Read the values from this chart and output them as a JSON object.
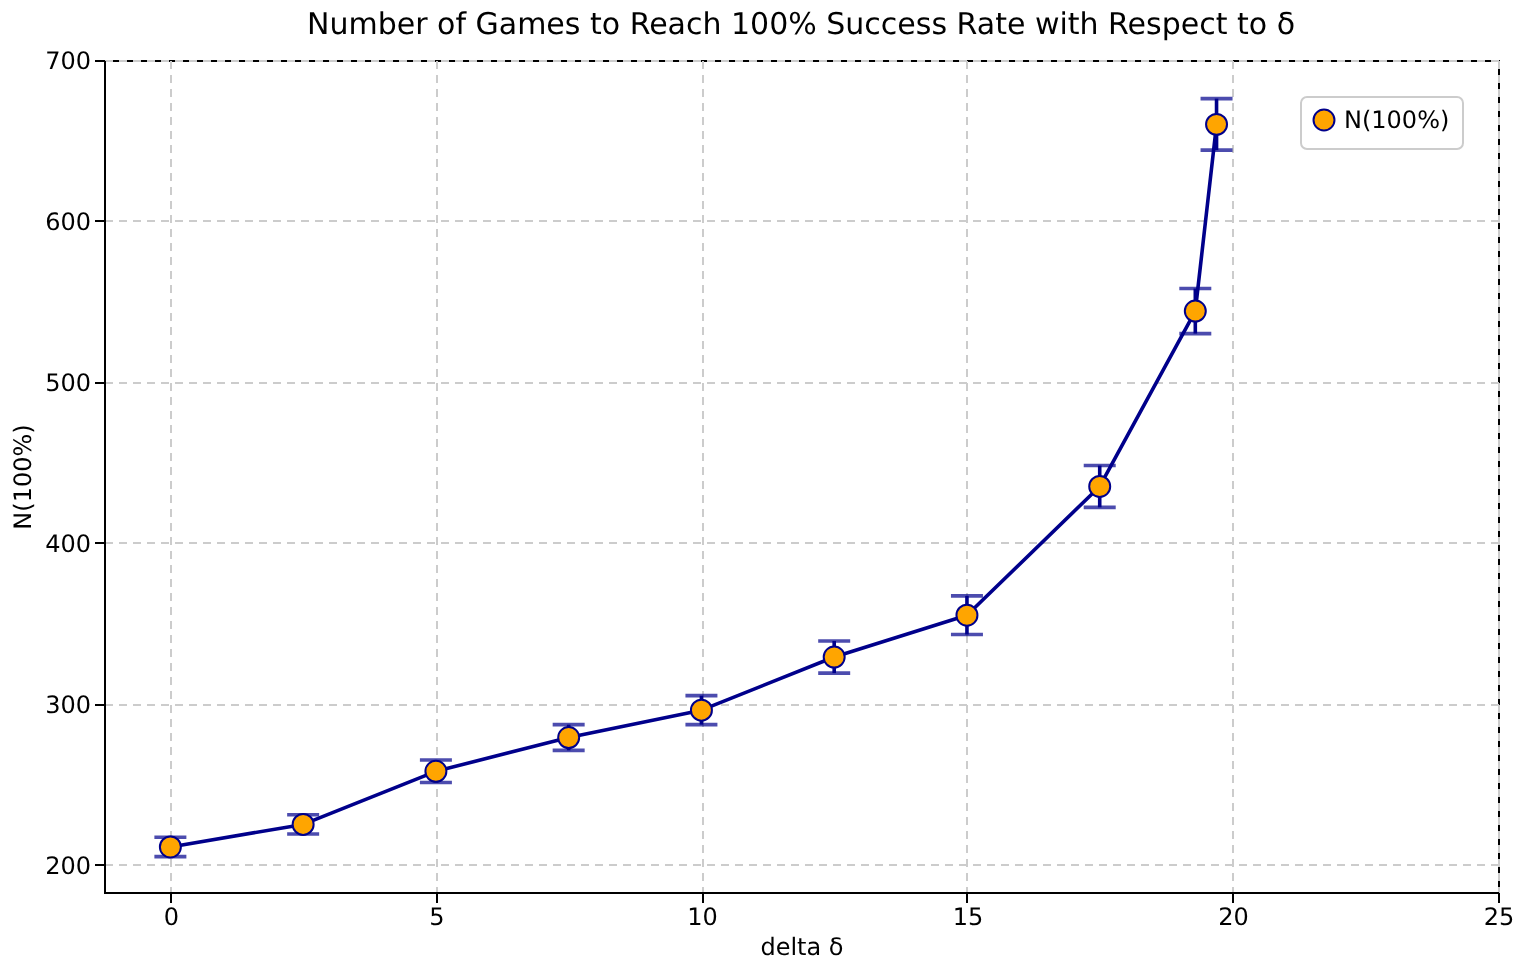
{
  "chart_data": {
    "type": "line",
    "title": "Number of Games to Reach 100% Success Rate with Respect to δ",
    "xlabel": "delta δ",
    "ylabel": "N(100%)",
    "x": [
      0,
      2.5,
      5,
      7.5,
      10,
      12.5,
      15,
      17.5,
      19.3,
      19.7
    ],
    "series": [
      {
        "name": "N(100%)",
        "color": "#00008b",
        "colors": [
          "#ffa500",
          "#ffa500",
          "#ffa500",
          "#ffa500",
          "#ffa500",
          "#ffa500",
          "#ffa500",
          "#ffa500",
          "#ffa500",
          "#ffa500"
        ],
        "values": [
          211,
          225,
          258,
          279,
          296,
          329,
          355,
          435,
          544,
          660
        ],
        "errors": [
          6,
          6,
          7,
          8,
          9,
          10,
          12,
          13,
          14,
          16
        ]
      }
    ],
    "xlim": [
      -1.25,
      25
    ],
    "xticks": [
      0,
      5,
      10,
      15,
      20,
      25
    ],
    "ylim": [
      183,
      700
    ],
    "yticks": [
      200,
      300,
      400,
      500,
      600,
      700
    ],
    "grid": true,
    "legend": "top right",
    "marker": "circle",
    "line_style": "solid"
  }
}
